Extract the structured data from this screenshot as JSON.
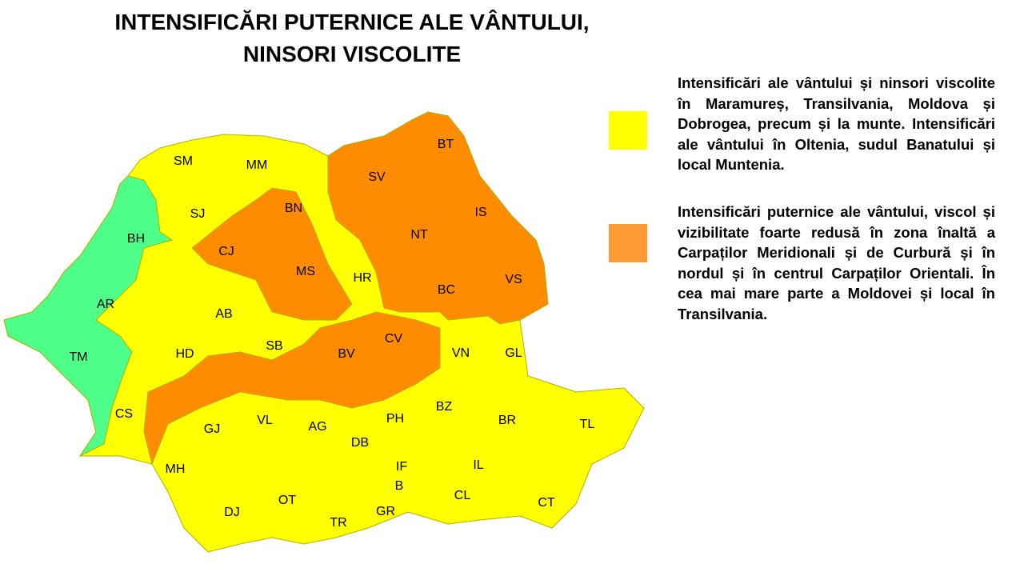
{
  "title": {
    "line1": "INTENSIFICĂRI PUTERNICE ALE VÂNTULUI,",
    "line2": "NINSORI VISCOLITE"
  },
  "colors": {
    "yellow": "#ffff00",
    "orange": "#ff8c00",
    "green": "#4dff88",
    "border": "#b0b000"
  },
  "legend": [
    {
      "color": "#ffff00",
      "text": "Intensificări ale vântului și ninsori viscolite în Maramureș, Transilvania, Moldova și Dobrogea, precum și la munte. Intensificări ale vântului în Oltenia, sudul Banatului și local Muntenia."
    },
    {
      "color": "#ff9933",
      "text": "Intensificări puternice ale vântului, viscol și vizibilitate foarte redusă în zona înaltă a Carpaților Meridionali și de Curbură și în nordul și în centrul Carpaților Orientali. În cea mai mare parte a Moldovei și local în Transilvania."
    }
  ],
  "counties": [
    "SM",
    "MM",
    "BT",
    "SV",
    "IS",
    "SJ",
    "BN",
    "BH",
    "CJ",
    "NT",
    "MS",
    "HR",
    "BC",
    "VS",
    "AR",
    "AB",
    "TM",
    "HD",
    "SB",
    "BV",
    "CV",
    "VN",
    "GL",
    "CS",
    "GJ",
    "VL",
    "AG",
    "DB",
    "PH",
    "BZ",
    "BR",
    "TL",
    "MH",
    "IF",
    "B",
    "IL",
    "DJ",
    "OT",
    "TR",
    "GR",
    "CL",
    "CT"
  ]
}
